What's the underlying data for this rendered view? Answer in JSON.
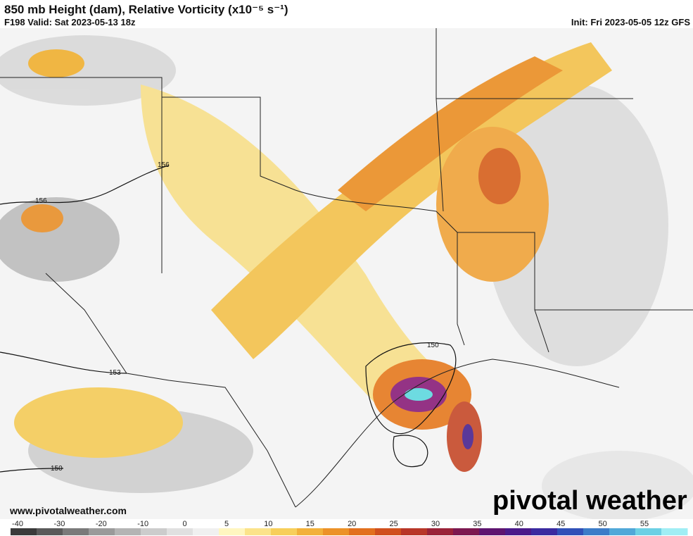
{
  "header": {
    "title": "850 mb Height (dam), Relative Vorticity (x10⁻⁵ s⁻¹)",
    "valid": "F198 Valid: Sat 2023-05-13 18z",
    "init": "Init: Fri 2023-05-05 12z GFS"
  },
  "map": {
    "contour_labels": [
      "156",
      "156",
      "153",
      "150",
      "150"
    ]
  },
  "footer": {
    "website": "www.pivotalweather.com",
    "logo": "pivotal weather"
  },
  "colorbar": {
    "labels": [
      "-40",
      "-30",
      "-20",
      "-10",
      "0",
      "5",
      "10",
      "15",
      "20",
      "25",
      "30",
      "35",
      "40",
      "45",
      "50",
      "55"
    ]
  }
}
